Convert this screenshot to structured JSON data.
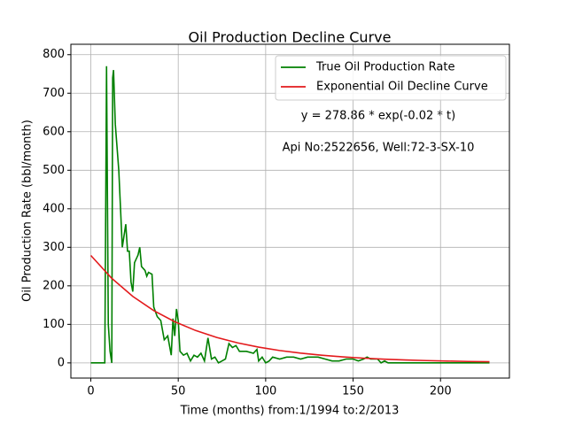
{
  "chart_data": {
    "type": "line",
    "title": "Oil Production Decline Curve",
    "xlabel": "Time (months) from:1/1994 to:2/2013",
    "ylabel": "Oil Production Rate (bbl/month)",
    "annotations": [
      "y = 278.86 * exp(-0.02 * t)",
      "Api No:2522656, Well:72-3-SX-10"
    ],
    "xlim": [
      -11.4,
      239.4
    ],
    "ylim": [
      -39.4,
      827
    ],
    "xticks": [
      0,
      50,
      100,
      150,
      200
    ],
    "yticks": [
      0,
      100,
      200,
      300,
      400,
      500,
      600,
      700,
      800
    ],
    "grid": true,
    "legend": "upper right",
    "series": [
      {
        "name": "True Oil Production Rate",
        "color": "#008000",
        "x": [
          0,
          8,
          9,
          10,
          11,
          12,
          12.5,
          13,
          14,
          16,
          18,
          20,
          21,
          22,
          23,
          24,
          25,
          27,
          28,
          29,
          31,
          32,
          33,
          35,
          36,
          38,
          40,
          42,
          44,
          46,
          47,
          48,
          49,
          50,
          51,
          53,
          55,
          57,
          59,
          61,
          63,
          65,
          67,
          69,
          71,
          73,
          75,
          77,
          79,
          81,
          83,
          85,
          89,
          93,
          95,
          96,
          98,
          100,
          102,
          104,
          108,
          112,
          116,
          120,
          124,
          130,
          134,
          138,
          142,
          146,
          150,
          153,
          156,
          158,
          160,
          164,
          166,
          168,
          170,
          180,
          190,
          200,
          210,
          220,
          228
        ],
        "values": [
          0,
          0,
          770,
          100,
          30,
          0,
          740,
          760,
          620,
          500,
          300,
          360,
          290,
          290,
          210,
          185,
          260,
          280,
          300,
          250,
          240,
          225,
          235,
          230,
          145,
          120,
          110,
          60,
          70,
          20,
          115,
          70,
          140,
          110,
          30,
          20,
          25,
          5,
          20,
          15,
          25,
          5,
          65,
          10,
          15,
          0,
          5,
          10,
          50,
          40,
          45,
          30,
          30,
          25,
          35,
          5,
          15,
          0,
          5,
          15,
          10,
          15,
          15,
          10,
          15,
          15,
          10,
          5,
          5,
          10,
          10,
          5,
          10,
          15,
          10,
          10,
          0,
          5,
          0,
          0,
          0,
          0,
          0,
          0,
          0
        ]
      },
      {
        "name": "Exponential Oil Decline Curve",
        "color": "#e31a1c",
        "x": [
          0,
          12,
          24,
          36,
          48,
          60,
          72,
          84,
          96,
          108,
          120,
          132,
          144,
          156,
          168,
          180,
          192,
          204,
          216,
          228
        ],
        "values": [
          278.86,
          219.36,
          172.55,
          135.74,
          106.78,
          83.99,
          66.07,
          51.97,
          40.88,
          32.16,
          25.3,
          19.9,
          15.65,
          12.31,
          9.69,
          7.62,
          5.99,
          4.71,
          3.71,
          2.92
        ]
      }
    ]
  }
}
